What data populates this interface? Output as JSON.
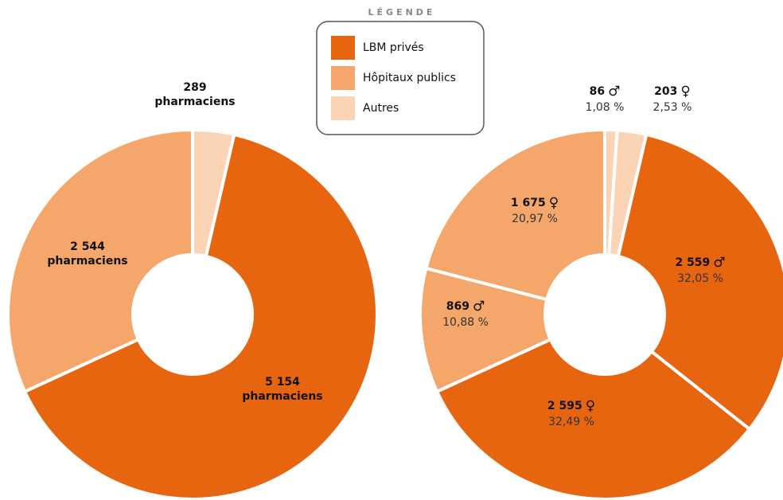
{
  "legend": {
    "title": "LÉGENDE",
    "items": [
      {
        "name": "LBM privés",
        "color": "#e8650f"
      },
      {
        "name": "Hôpitaux publics",
        "color": "#f5a66a"
      },
      {
        "name": "Autres",
        "color": "#fbd3b5"
      }
    ]
  },
  "chart_data": [
    {
      "type": "donut",
      "values": [
        289,
        5154,
        2544
      ],
      "value_labels": [
        "289",
        "5 154",
        "2 544"
      ],
      "label_unit": "pharmaciens",
      "colors": [
        "#fbd3b5",
        "#e8650f",
        "#f5a66a"
      ]
    },
    {
      "type": "donut",
      "values": [
        86,
        203,
        2559,
        2595,
        869,
        1675
      ],
      "value_labels": [
        "86",
        "203",
        "2 559",
        "2 595",
        "869",
        "1 675"
      ],
      "genders": [
        "♂",
        "♀",
        "♂",
        "♀",
        "♂",
        "♀"
      ],
      "percents": [
        1.08,
        2.53,
        32.05,
        32.49,
        10.88,
        20.97
      ],
      "percent_labels": [
        "1,08 %",
        "2,53 %",
        "32,05 %",
        "32,49 %",
        "10,88 %",
        "20,97 %"
      ],
      "colors": [
        "#fbd3b5",
        "#fbd3b5",
        "#e8650f",
        "#e8650f",
        "#f5a66a",
        "#f5a66a"
      ]
    }
  ]
}
